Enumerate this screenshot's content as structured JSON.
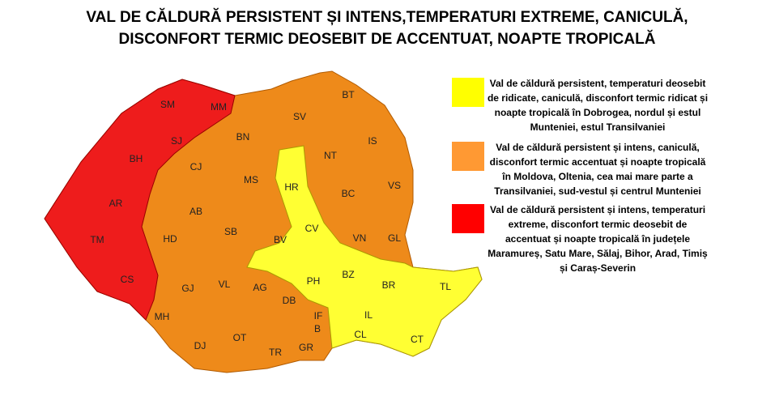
{
  "title": [
    "VAL DE CĂLDURĂ PERSISTENT ȘI INTENS,TEMPERATURI EXTREME, CANICULĂ,",
    "DISCONFORT TERMIC DEOSEBIT DE ACCENTUAT, NOAPTE TROPICALĂ"
  ],
  "legend": [
    {
      "color": "#ffff00",
      "lines": [
        "Val de căldură persistent, temperaturi deosebit",
        "de ridicate, caniculă, disconfort termic ridicat și",
        "noapte tropicală în Dobrogea, nordul și estul",
        "Munteniei, estul Transilvaniei"
      ]
    },
    {
      "color": "#ff9933",
      "lines": [
        "Val de căldură persistent și intens, caniculă,",
        "disconfort termic accentuat și noapte tropicală",
        "în Moldova, Oltenia, cea mai mare parte a",
        "Transilvaniei, sud-vestul și centrul Munteniei"
      ]
    },
    {
      "color": "#ff0000",
      "lines": [
        "Val de căldură persistent și intens, temperaturi",
        "extreme, disconfort termic deosebit de",
        "accentuat și noapte tropicală în județele",
        "Maramureș, Satu Mare, Sălaj, Bihor, Arad, Timiș",
        "și Caraș-Severin"
      ]
    }
  ],
  "counties": [
    "SM",
    "MM",
    "SJ",
    "BN",
    "SV",
    "BT",
    "BH",
    "CJ",
    "NT",
    "IS",
    "HR",
    "MS",
    "BC",
    "VS",
    "AR",
    "AB",
    "CV",
    "HD",
    "SB",
    "BV",
    "VN",
    "GL",
    "TM",
    "CS",
    "GJ",
    "VL",
    "AG",
    "PH",
    "BZ",
    "BR",
    "TL",
    "DB",
    "IF",
    "IL",
    "MH",
    "B",
    "CL",
    "OT",
    "DJ",
    "GR",
    "TR",
    "CT"
  ]
}
